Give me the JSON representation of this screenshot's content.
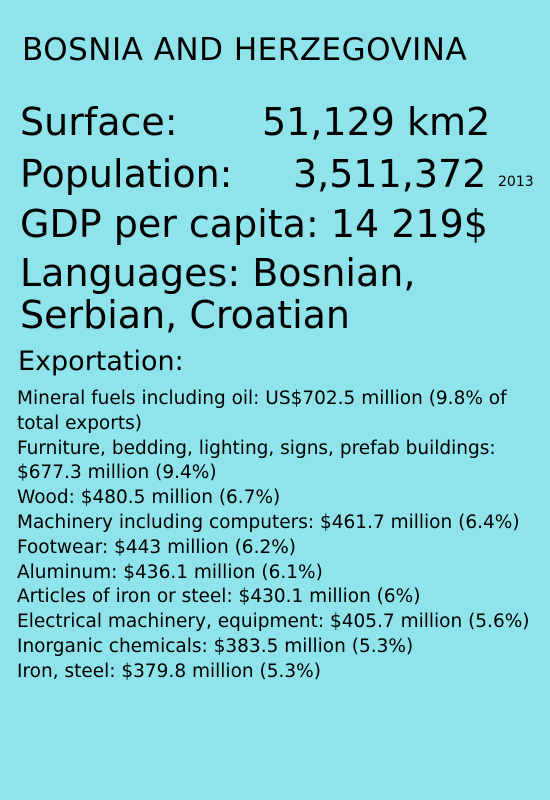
{
  "title": "BOSNIA AND HERZEGOVINA",
  "surface": {
    "label": "Surface:",
    "value": "51,129 km2"
  },
  "population": {
    "label": "Population:",
    "value": "3,511,372",
    "year": "2013"
  },
  "gdp": {
    "text": "GDP per capita: 14 219$"
  },
  "languages": {
    "text": "Languages: Bosnian, Serbian, Croatian"
  },
  "exportation": {
    "heading": "Exportation:",
    "items": [
      "Mineral fuels including oil: US$702.5 million (9.8% of total exports)",
      "Furniture, bedding, lighting, signs, prefab buildings: $677.3 million (9.4%)",
      "Wood: $480.5 million (6.7%)",
      "Machinery including computers: $461.7 million (6.4%)",
      "Footwear: $443 million (6.2%)",
      "Aluminum: $436.1 million (6.1%)",
      "Articles of iron or steel: $430.1 million (6%)",
      "Electrical machinery, equipment: $405.7 million (5.6%)",
      "Inorganic chemicals: $383.5 million (5.3%)",
      "Iron, steel: $379.8 million (5.3%)"
    ]
  },
  "colors": {
    "background": "#8fe3ea",
    "text": "#000000"
  }
}
